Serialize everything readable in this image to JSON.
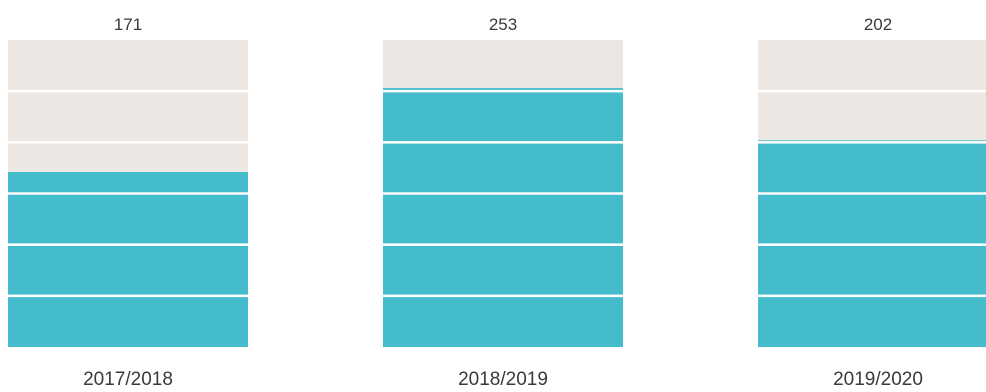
{
  "chart_data": {
    "type": "bar",
    "categories": [
      "2017/2018",
      "2018/2019",
      "2019/2020"
    ],
    "values": [
      171,
      253,
      202
    ],
    "data_labels": [
      "171",
      "253",
      "202"
    ],
    "ylim": [
      0,
      300
    ],
    "title": "",
    "xlabel": "",
    "ylabel": "",
    "grid": false,
    "legend": "none",
    "colors": {
      "bar": "#45bccb",
      "background_track": "#ede7e3",
      "divider": "#ffffff",
      "text": "#3a3a3a"
    }
  }
}
